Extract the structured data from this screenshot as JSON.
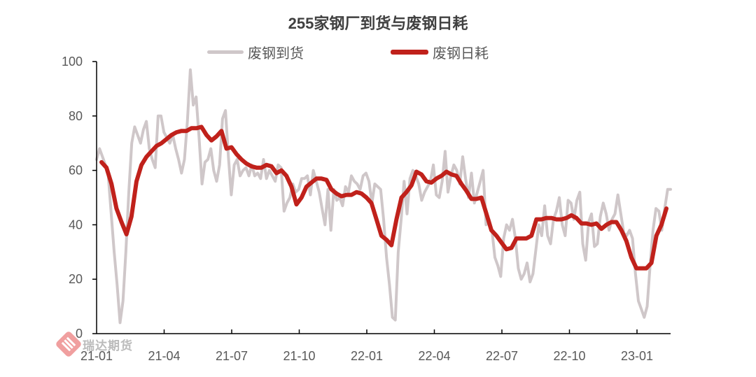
{
  "chart_data": {
    "type": "line",
    "title": "255家钢厂到货与废钢日耗",
    "xlabel": "",
    "ylabel": "",
    "ylim": [
      0,
      100
    ],
    "yticks": [
      0,
      20,
      40,
      60,
      80,
      100
    ],
    "xticks": [
      "21-01",
      "21-04",
      "21-07",
      "21-10",
      "22-01",
      "22-04",
      "22-07",
      "22-10",
      "23-01"
    ],
    "grid": false,
    "legend_position": "top",
    "series": [
      {
        "name": "废钢到货",
        "color": "#cfc7c9",
        "width": 4,
        "values": [
          64,
          68,
          65,
          62,
          58,
          44,
          30,
          18,
          4,
          12,
          30,
          52,
          70,
          76,
          73,
          70,
          75,
          78,
          68,
          64,
          61,
          80,
          80,
          74,
          72,
          70,
          73,
          68,
          64,
          59,
          64,
          78,
          97,
          84,
          87,
          72,
          55,
          63,
          64,
          68,
          60,
          56,
          62,
          79,
          82,
          65,
          51,
          62,
          64,
          58,
          60,
          61,
          58,
          62,
          58,
          59,
          57,
          64,
          57,
          60,
          58,
          56,
          62,
          61,
          45,
          48,
          50,
          55,
          52,
          53,
          57,
          57,
          58,
          51,
          60,
          56,
          52,
          46,
          40,
          53,
          38,
          53,
          49,
          50,
          47,
          54,
          52,
          58,
          56,
          55,
          53,
          58,
          59,
          56,
          48,
          55,
          54,
          53,
          42,
          28,
          18,
          6,
          5,
          30,
          42,
          56,
          44,
          57,
          60,
          58,
          55,
          49,
          52,
          54,
          56,
          62,
          51,
          50,
          56,
          67,
          52,
          58,
          62,
          60,
          55,
          65,
          57,
          50,
          59,
          48,
          52,
          56,
          60,
          40,
          42,
          38,
          28,
          25,
          21,
          35,
          40,
          38,
          42,
          35,
          24,
          20,
          22,
          26,
          19,
          22,
          31,
          40,
          36,
          47,
          36,
          33,
          42,
          45,
          50,
          40,
          36,
          49,
          48,
          42,
          49,
          52,
          33,
          27,
          41,
          44,
          32,
          33,
          43,
          48,
          44,
          38,
          42,
          44,
          51,
          44,
          37,
          36,
          38,
          35,
          22,
          12,
          9,
          6,
          10,
          25,
          38,
          46,
          45,
          38,
          46,
          53,
          53
        ]
      },
      {
        "name": "废钢日耗",
        "color": "#c0211b",
        "width": 6,
        "values": [
          63,
          61,
          55,
          46,
          41,
          36.5,
          43,
          56,
          62,
          65,
          67,
          69,
          70,
          71.5,
          73,
          74,
          74.5,
          74.5,
          75.5,
          75.5,
          76,
          73,
          71,
          72.5,
          74.5,
          68,
          68.5,
          66,
          64,
          62.5,
          61.5,
          61,
          61,
          62,
          61.5,
          59,
          60,
          58,
          54,
          47.5,
          50,
          54,
          55.5,
          57,
          57,
          56.5,
          53,
          51.5,
          50.5,
          51,
          51,
          52,
          51.5,
          50,
          48,
          42,
          36,
          34.5,
          32.5,
          42,
          50,
          52,
          54.5,
          59.5,
          58.5,
          56,
          55.5,
          57,
          58,
          59.5,
          58.5,
          58,
          55,
          52.5,
          49.5,
          49.5,
          50,
          44,
          38,
          36,
          33.5,
          31,
          31.5,
          35,
          35,
          35,
          36,
          42,
          42,
          42.5,
          42.5,
          42,
          42,
          42.5,
          43.5,
          42.5,
          40.5,
          40.5,
          40,
          40.5,
          38.5,
          40,
          41,
          41,
          38,
          34,
          28,
          24,
          24,
          24,
          26,
          36,
          40,
          46
        ]
      }
    ]
  },
  "title": "255家钢厂到货与废钢日耗",
  "legend": {
    "items": [
      {
        "label": "废钢到货",
        "color": "#cfc7c9"
      },
      {
        "label": "废钢日耗",
        "color": "#c0211b"
      }
    ]
  },
  "watermark": {
    "text": "瑞达期货"
  }
}
